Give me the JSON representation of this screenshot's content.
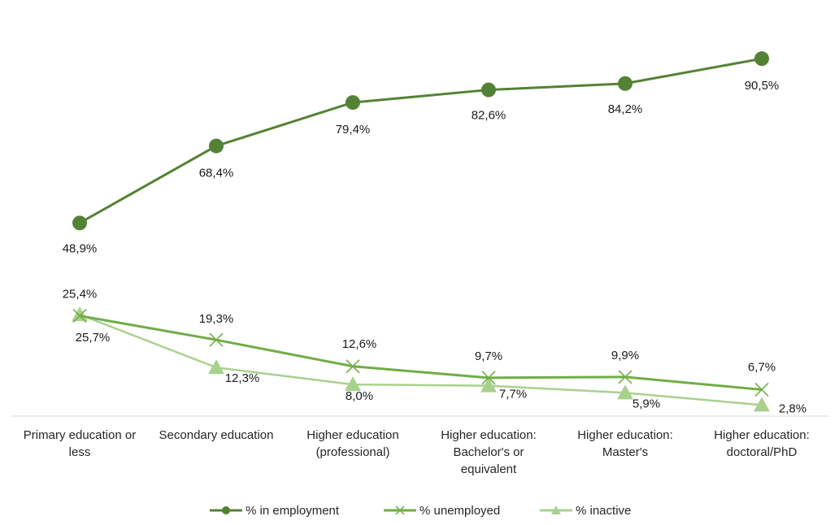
{
  "chart_data": {
    "type": "line",
    "title": "",
    "xlabel": "",
    "ylabel": "",
    "ylim": [
      0,
      100
    ],
    "grid": false,
    "legend_position": "bottom",
    "categories": [
      [
        "Primary education or",
        "less"
      ],
      [
        "Secondary education"
      ],
      [
        "Higher education",
        "(professional)"
      ],
      [
        "Higher education:",
        "Bachelor's or",
        "equivalent"
      ],
      [
        "Higher education:",
        "Master's"
      ],
      [
        "Higher education:",
        "doctoral/PhD"
      ]
    ],
    "series": [
      {
        "name": "% in employment",
        "values": [
          48.9,
          68.4,
          79.4,
          82.6,
          84.2,
          90.5
        ],
        "labels": [
          "48,9%",
          "68,4%",
          "79,4%",
          "82,6%",
          "84,2%",
          "90,5%"
        ],
        "color": "#548235",
        "marker": "circle"
      },
      {
        "name": "% unemployed",
        "values": [
          25.4,
          19.3,
          12.6,
          9.7,
          9.9,
          6.7
        ],
        "labels": [
          "25,4%",
          "19,3%",
          "12,6%",
          "9,7%",
          "9,9%",
          "6,7%"
        ],
        "color": "#70AD47",
        "marker": "x"
      },
      {
        "name": "% inactive",
        "values": [
          25.7,
          12.3,
          8.0,
          7.7,
          5.9,
          2.8
        ],
        "labels": [
          "25,7%",
          "12,3%",
          "8,0%",
          "7,7%",
          "5,9%",
          "2,8%"
        ],
        "color": "#A9D18E",
        "marker": "triangle"
      }
    ]
  }
}
